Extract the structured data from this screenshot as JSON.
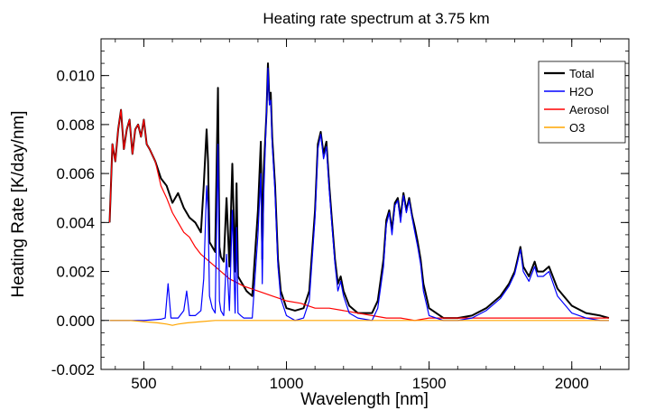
{
  "chart_data": {
    "type": "line",
    "title": "Heating rate spectrum at 3.75 km",
    "xlabel": "Wavelength [nm]",
    "ylabel": "Heating Rate [K/day/nm]",
    "xlim": [
      350,
      2200
    ],
    "ylim": [
      -0.002,
      0.0115
    ],
    "xticks": [
      500,
      1000,
      1500,
      2000
    ],
    "yticks": [
      -0.002,
      0.0,
      0.002,
      0.004,
      0.006,
      0.008,
      0.01
    ],
    "xtick_labels": [
      "500",
      "1000",
      "1500",
      "2000"
    ],
    "ytick_labels": [
      "-0.002",
      "0.000",
      "0.002",
      "0.004",
      "0.006",
      "0.008",
      "0.010"
    ],
    "grid": false,
    "legend_position": "top-right",
    "series": [
      {
        "name": "Total",
        "color": "#000000",
        "x": [
          380,
          390,
          400,
          410,
          420,
          430,
          440,
          450,
          460,
          470,
          480,
          490,
          500,
          510,
          520,
          540,
          560,
          580,
          600,
          620,
          640,
          660,
          680,
          700,
          710,
          720,
          725,
          730,
          740,
          750,
          760,
          765,
          770,
          780,
          790,
          800,
          810,
          820,
          825,
          830,
          840,
          850,
          860,
          870,
          880,
          900,
          910,
          915,
          920,
          930,
          935,
          940,
          945,
          950,
          960,
          965,
          970,
          980,
          1000,
          1030,
          1060,
          1080,
          1100,
          1110,
          1120,
          1130,
          1140,
          1150,
          1160,
          1170,
          1180,
          1190,
          1200,
          1220,
          1250,
          1300,
          1320,
          1340,
          1350,
          1360,
          1370,
          1380,
          1390,
          1400,
          1410,
          1420,
          1430,
          1440,
          1450,
          1460,
          1470,
          1480,
          1500,
          1550,
          1600,
          1650,
          1700,
          1750,
          1780,
          1800,
          1810,
          1820,
          1830,
          1850,
          1870,
          1880,
          1900,
          1920,
          1950,
          2000,
          2050,
          2100,
          2130
        ],
        "y": [
          0.004,
          0.0072,
          0.0065,
          0.0078,
          0.0086,
          0.007,
          0.0078,
          0.0082,
          0.0068,
          0.0078,
          0.008,
          0.0075,
          0.0082,
          0.0072,
          0.007,
          0.0065,
          0.0058,
          0.0055,
          0.0048,
          0.0052,
          0.0046,
          0.0042,
          0.004,
          0.0036,
          0.0055,
          0.0078,
          0.0065,
          0.0032,
          0.003,
          0.0028,
          0.0095,
          0.003,
          0.0026,
          0.0024,
          0.005,
          0.0022,
          0.0064,
          0.002,
          0.0056,
          0.0018,
          0.0016,
          0.0014,
          0.0012,
          0.0011,
          0.001,
          0.0045,
          0.0073,
          0.0025,
          0.006,
          0.0085,
          0.0105,
          0.009,
          0.0093,
          0.0075,
          0.0055,
          0.004,
          0.0025,
          0.0012,
          0.0005,
          0.0004,
          0.0005,
          0.0012,
          0.0045,
          0.0072,
          0.0077,
          0.0068,
          0.0073,
          0.0055,
          0.004,
          0.0025,
          0.0015,
          0.0018,
          0.0012,
          0.0006,
          0.0003,
          0.0003,
          0.0008,
          0.0025,
          0.0041,
          0.0045,
          0.0037,
          0.0048,
          0.005,
          0.0042,
          0.0052,
          0.0045,
          0.005,
          0.0043,
          0.0038,
          0.0032,
          0.0025,
          0.0015,
          0.0005,
          0.0001,
          0.0001,
          0.0002,
          0.0005,
          0.001,
          0.0015,
          0.002,
          0.0025,
          0.003,
          0.0022,
          0.0018,
          0.0024,
          0.002,
          0.002,
          0.0022,
          0.0013,
          0.0006,
          0.0003,
          0.0002,
          0.0001
        ]
      },
      {
        "name": "H2O",
        "color": "#0000ff",
        "x": [
          380,
          500,
          560,
          575,
          585,
          595,
          620,
          640,
          650,
          660,
          680,
          700,
          710,
          720,
          725,
          730,
          740,
          750,
          760,
          765,
          770,
          780,
          790,
          800,
          810,
          820,
          825,
          830,
          840,
          850,
          860,
          870,
          880,
          900,
          910,
          915,
          920,
          930,
          935,
          940,
          945,
          950,
          960,
          965,
          970,
          980,
          1000,
          1030,
          1060,
          1080,
          1100,
          1110,
          1120,
          1130,
          1140,
          1150,
          1160,
          1170,
          1180,
          1190,
          1200,
          1220,
          1250,
          1300,
          1320,
          1340,
          1350,
          1360,
          1370,
          1380,
          1390,
          1400,
          1410,
          1420,
          1430,
          1440,
          1450,
          1460,
          1470,
          1480,
          1500,
          1550,
          1600,
          1650,
          1700,
          1750,
          1780,
          1800,
          1810,
          1820,
          1830,
          1850,
          1870,
          1880,
          1900,
          1920,
          1950,
          2000,
          2050,
          2100,
          2130
        ],
        "y": [
          0.0,
          0.0,
          5e-05,
          0.0001,
          0.0015,
          0.0001,
          0.0001,
          0.0004,
          0.0012,
          0.0002,
          0.0002,
          0.0004,
          0.0017,
          0.0055,
          0.0045,
          0.001,
          0.0005,
          0.0003,
          0.0072,
          0.0008,
          0.0004,
          0.0002,
          0.0027,
          0.0004,
          0.0045,
          0.0003,
          0.0038,
          0.0003,
          0.0002,
          0.0001,
          0.0001,
          0.0001,
          0.0001,
          0.0035,
          0.006,
          0.0015,
          0.005,
          0.0085,
          0.0103,
          0.0088,
          0.009,
          0.0072,
          0.0052,
          0.0037,
          0.0022,
          0.0009,
          0.0002,
          0.0,
          0.0001,
          0.0008,
          0.0042,
          0.007,
          0.0076,
          0.0066,
          0.0071,
          0.0053,
          0.0038,
          0.0023,
          0.0012,
          0.0016,
          0.001,
          0.0003,
          0.0001,
          0.0,
          0.0005,
          0.0022,
          0.0039,
          0.0044,
          0.0035,
          0.0047,
          0.0049,
          0.004,
          0.0051,
          0.0044,
          0.0049,
          0.0042,
          0.0036,
          0.003,
          0.0023,
          0.0012,
          0.0002,
          0.0,
          0.0,
          0.0001,
          0.0004,
          0.0009,
          0.0014,
          0.0019,
          0.0024,
          0.0029,
          0.002,
          0.0016,
          0.0022,
          0.0018,
          0.0018,
          0.002,
          0.001,
          0.0003,
          0.0001,
          0.0,
          0.0
        ]
      },
      {
        "name": "Aerosol",
        "color": "#ff0000",
        "x": [
          380,
          390,
          400,
          410,
          420,
          430,
          440,
          450,
          460,
          470,
          480,
          490,
          500,
          510,
          520,
          540,
          560,
          580,
          600,
          620,
          640,
          660,
          680,
          700,
          750,
          800,
          850,
          900,
          950,
          1000,
          1050,
          1100,
          1150,
          1200,
          1250,
          1300,
          1350,
          1400,
          1450,
          1500,
          1550,
          1600,
          1650,
          1700,
          1800,
          1900,
          2000,
          2100,
          2130
        ],
        "y": [
          0.004,
          0.0072,
          0.0065,
          0.0078,
          0.0086,
          0.007,
          0.0078,
          0.0082,
          0.0068,
          0.0078,
          0.008,
          0.0075,
          0.0082,
          0.0072,
          0.007,
          0.0065,
          0.0055,
          0.005,
          0.0044,
          0.004,
          0.0036,
          0.0034,
          0.003,
          0.0027,
          0.0022,
          0.0017,
          0.0014,
          0.0012,
          0.001,
          0.0008,
          0.0007,
          0.0005,
          0.0005,
          0.0004,
          0.0003,
          0.0002,
          0.0001,
          0.0001,
          0.0,
          0.0001,
          0.0001,
          0.0001,
          0.0001,
          0.0001,
          0.0001,
          0.0001,
          0.0001,
          0.0001,
          0.0001
        ]
      },
      {
        "name": "O3",
        "color": "#ffa500",
        "x": [
          380,
          450,
          500,
          550,
          580,
          600,
          620,
          650,
          700,
          750,
          800,
          900,
          1000,
          1500,
          2000,
          2130
        ],
        "y": [
          0.0,
          0.0,
          -5e-05,
          -0.0001,
          -0.00015,
          -0.0002,
          -0.00015,
          -0.0001,
          -5e-05,
          0.0,
          0.0,
          0.0,
          0.0,
          0.0,
          0.0,
          0.0
        ]
      }
    ]
  }
}
